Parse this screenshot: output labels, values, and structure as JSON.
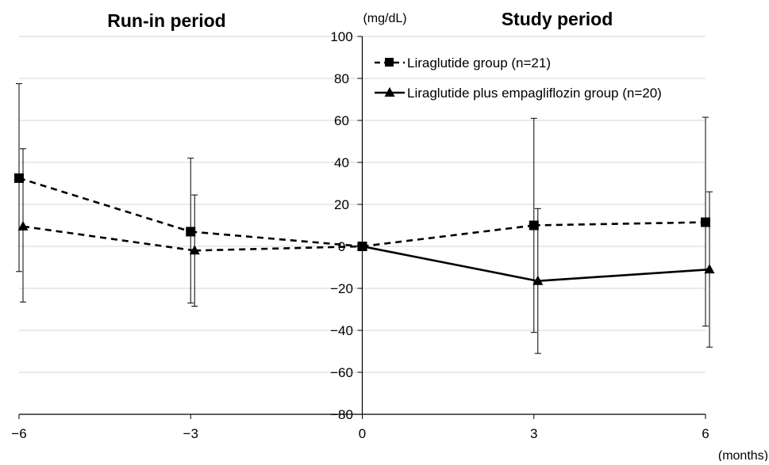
{
  "chart_data": {
    "type": "line",
    "period_labels": {
      "run_in": "Run-in period",
      "study": "Study period"
    },
    "ylabel": "(mg/dL)",
    "xlabel": "(months)",
    "ylim": [
      -80,
      100
    ],
    "xlim": [
      -6,
      6
    ],
    "y_ticks": [
      100,
      80,
      60,
      40,
      20,
      0,
      -20,
      -40,
      -60,
      -80
    ],
    "y_tick_labels": [
      "100",
      "80",
      "60",
      "40",
      "20",
      "0",
      "−20",
      "−40",
      "−60",
      "−80"
    ],
    "x_ticks": [
      -6,
      -3,
      0,
      3,
      6
    ],
    "x_tick_labels": [
      "−6",
      "−3",
      "0",
      "3",
      "6"
    ],
    "grid": "horizontal",
    "legend_position": "top-right",
    "series": [
      {
        "name": "Liraglutide group (n=21)",
        "marker": "square",
        "x": [
          -6,
          -3,
          0,
          3,
          6
        ],
        "y": [
          32.5,
          7,
          0,
          10,
          11.5
        ],
        "err_upper": [
          77.5,
          42,
          0,
          61,
          61.5
        ],
        "err_lower": [
          -12,
          -27,
          0,
          -41,
          -38
        ],
        "styles": [
          "dashed",
          "dashed",
          "dashed",
          "dashed"
        ]
      },
      {
        "name": "Liraglutide plus empagliflozin group (n=20)",
        "marker": "triangle",
        "x": [
          -6,
          -3,
          0,
          3,
          6
        ],
        "y": [
          9.5,
          -2,
          0,
          -16.5,
          -11
        ],
        "err_upper": [
          46.5,
          24.5,
          0,
          18,
          26
        ],
        "err_lower": [
          -26.5,
          -28.5,
          0,
          -51,
          -48
        ],
        "styles": [
          "dashed",
          "dashed",
          "solid",
          "solid"
        ]
      }
    ]
  }
}
